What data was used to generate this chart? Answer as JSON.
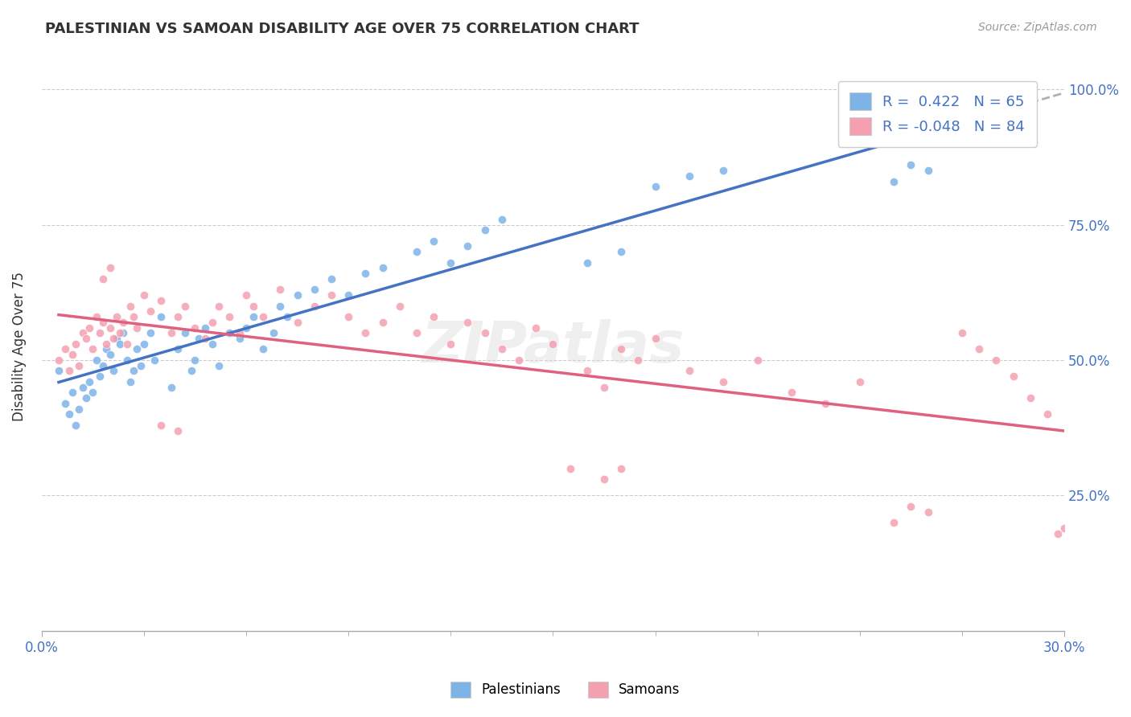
{
  "title": "PALESTINIAN VS SAMOAN DISABILITY AGE OVER 75 CORRELATION CHART",
  "source_text": "Source: ZipAtlas.com",
  "ylabel": "Disability Age Over 75",
  "xlim": [
    0.0,
    0.3
  ],
  "ylim": [
    0.0,
    1.05
  ],
  "yticks": [
    0.25,
    0.5,
    0.75,
    1.0
  ],
  "ytick_labels": [
    "25.0%",
    "50.0%",
    "75.0%",
    "100.0%"
  ],
  "color_palestinians": "#7EB3E8",
  "color_samoans": "#F4A0B0",
  "color_line_palestinians": "#4472C4",
  "color_line_samoans": "#E06080",
  "color_line_ext": "#B0B0B0",
  "watermark": "ZIPatlas",
  "palestinian_x": [
    0.005,
    0.007,
    0.008,
    0.009,
    0.01,
    0.011,
    0.012,
    0.013,
    0.014,
    0.015,
    0.016,
    0.017,
    0.018,
    0.019,
    0.02,
    0.021,
    0.022,
    0.023,
    0.024,
    0.025,
    0.026,
    0.027,
    0.028,
    0.029,
    0.03,
    0.032,
    0.033,
    0.035,
    0.038,
    0.04,
    0.042,
    0.044,
    0.045,
    0.046,
    0.048,
    0.05,
    0.052,
    0.055,
    0.058,
    0.06,
    0.062,
    0.065,
    0.068,
    0.07,
    0.072,
    0.075,
    0.08,
    0.085,
    0.09,
    0.095,
    0.1,
    0.11,
    0.115,
    0.12,
    0.125,
    0.13,
    0.135,
    0.16,
    0.17,
    0.18,
    0.19,
    0.2,
    0.25,
    0.255,
    0.26
  ],
  "palestinian_y": [
    0.48,
    0.42,
    0.4,
    0.44,
    0.38,
    0.41,
    0.45,
    0.43,
    0.46,
    0.44,
    0.5,
    0.47,
    0.49,
    0.52,
    0.51,
    0.48,
    0.54,
    0.53,
    0.55,
    0.5,
    0.46,
    0.48,
    0.52,
    0.49,
    0.53,
    0.55,
    0.5,
    0.58,
    0.45,
    0.52,
    0.55,
    0.48,
    0.5,
    0.54,
    0.56,
    0.53,
    0.49,
    0.55,
    0.54,
    0.56,
    0.58,
    0.52,
    0.55,
    0.6,
    0.58,
    0.62,
    0.63,
    0.65,
    0.62,
    0.66,
    0.67,
    0.7,
    0.72,
    0.68,
    0.71,
    0.74,
    0.76,
    0.68,
    0.7,
    0.82,
    0.84,
    0.85,
    0.83,
    0.86,
    0.85
  ],
  "samoan_x": [
    0.005,
    0.007,
    0.008,
    0.009,
    0.01,
    0.011,
    0.012,
    0.013,
    0.014,
    0.015,
    0.016,
    0.017,
    0.018,
    0.019,
    0.02,
    0.021,
    0.022,
    0.023,
    0.024,
    0.025,
    0.026,
    0.027,
    0.028,
    0.03,
    0.032,
    0.035,
    0.038,
    0.04,
    0.042,
    0.045,
    0.048,
    0.05,
    0.052,
    0.055,
    0.058,
    0.06,
    0.062,
    0.065,
    0.07,
    0.075,
    0.08,
    0.085,
    0.09,
    0.095,
    0.1,
    0.105,
    0.11,
    0.115,
    0.12,
    0.125,
    0.13,
    0.135,
    0.14,
    0.145,
    0.15,
    0.155,
    0.16,
    0.165,
    0.17,
    0.175,
    0.18,
    0.19,
    0.2,
    0.21,
    0.22,
    0.23,
    0.24,
    0.25,
    0.255,
    0.26,
    0.27,
    0.275,
    0.28,
    0.285,
    0.29,
    0.295,
    0.298,
    0.3,
    0.035,
    0.04,
    0.018,
    0.02,
    0.165,
    0.17
  ],
  "samoan_y": [
    0.5,
    0.52,
    0.48,
    0.51,
    0.53,
    0.49,
    0.55,
    0.54,
    0.56,
    0.52,
    0.58,
    0.55,
    0.57,
    0.53,
    0.56,
    0.54,
    0.58,
    0.55,
    0.57,
    0.53,
    0.6,
    0.58,
    0.56,
    0.62,
    0.59,
    0.61,
    0.55,
    0.58,
    0.6,
    0.56,
    0.54,
    0.57,
    0.6,
    0.58,
    0.55,
    0.62,
    0.6,
    0.58,
    0.63,
    0.57,
    0.6,
    0.62,
    0.58,
    0.55,
    0.57,
    0.6,
    0.55,
    0.58,
    0.53,
    0.57,
    0.55,
    0.52,
    0.5,
    0.56,
    0.53,
    0.3,
    0.48,
    0.45,
    0.52,
    0.5,
    0.54,
    0.48,
    0.46,
    0.5,
    0.44,
    0.42,
    0.46,
    0.2,
    0.23,
    0.22,
    0.55,
    0.52,
    0.5,
    0.47,
    0.43,
    0.4,
    0.18,
    0.19,
    0.38,
    0.37,
    0.65,
    0.67,
    0.28,
    0.3
  ]
}
